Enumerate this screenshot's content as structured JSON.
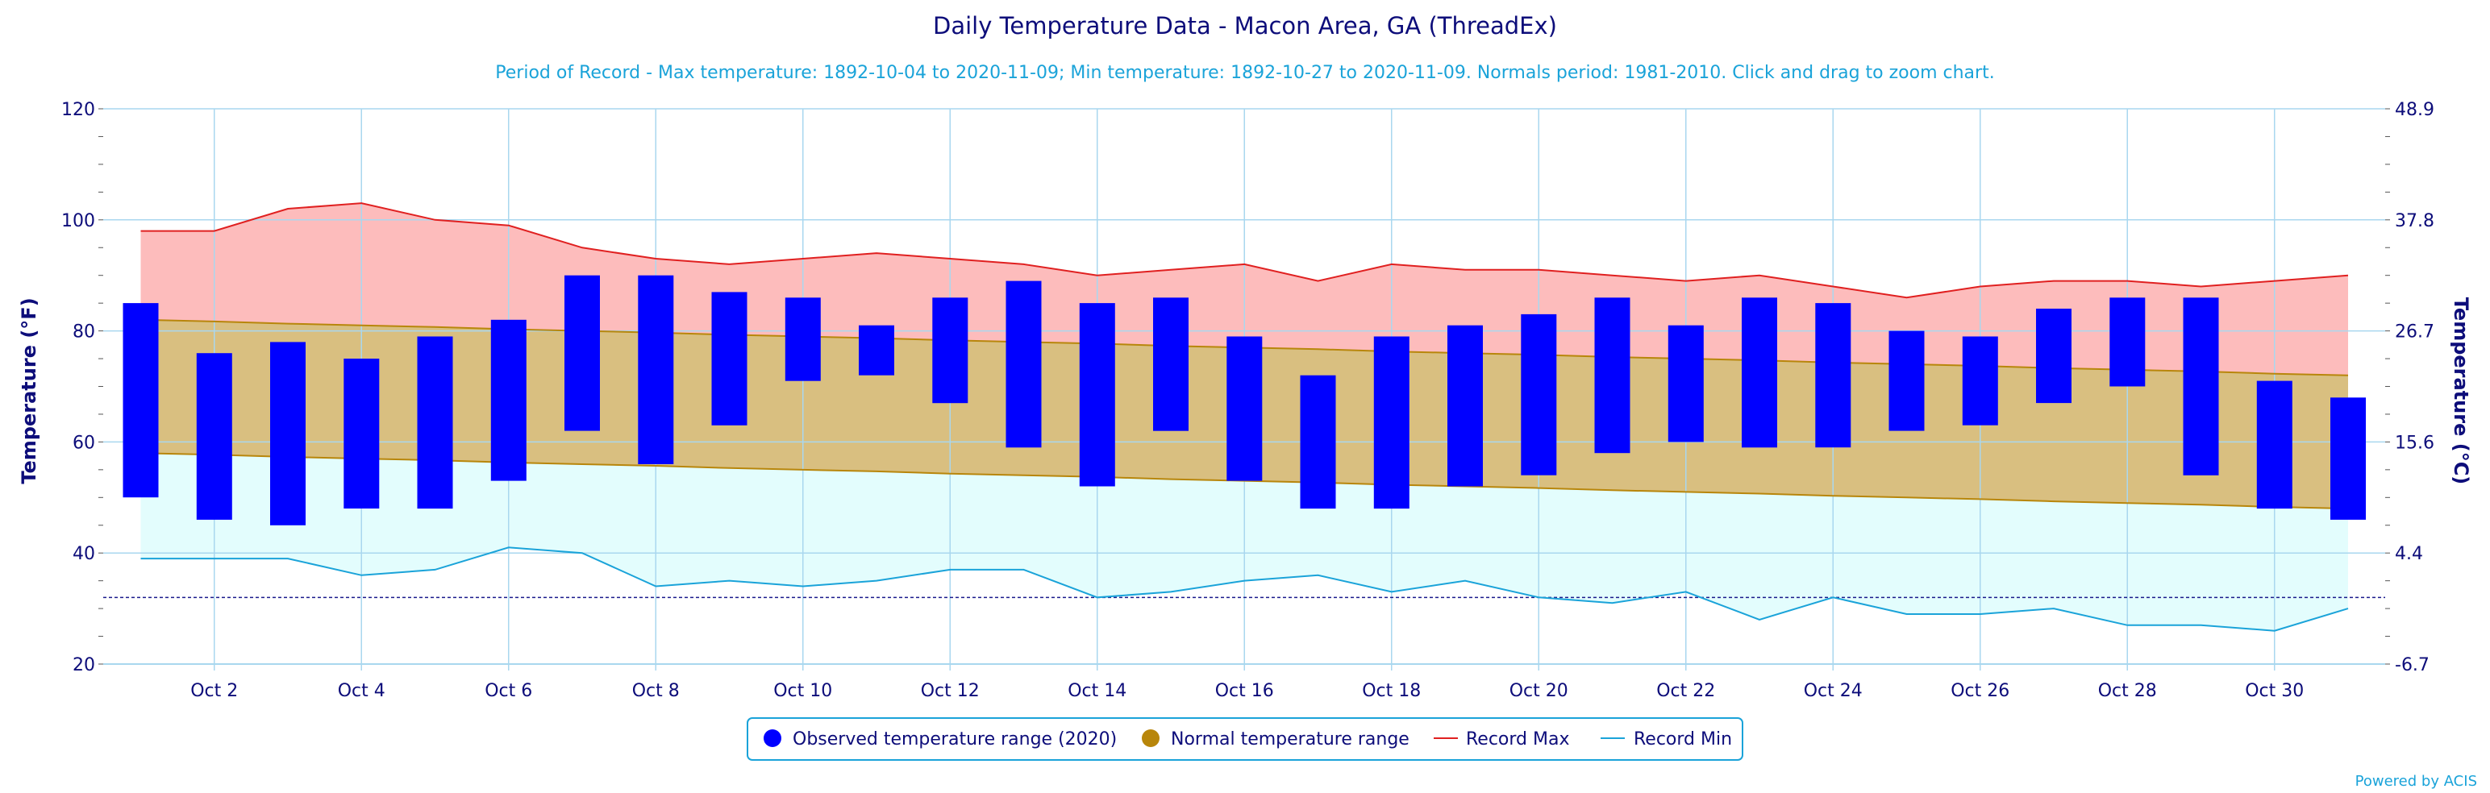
{
  "chart_data": {
    "type": "bar",
    "title": "Daily Temperature Data - Macon Area, GA (ThreadEx)",
    "subtitle": "Period of Record - Max temperature: 1892-10-04 to 2020-11-09; Min temperature: 1892-10-27 to 2020-11-09. Normals period: 1981-2010. Click and drag to zoom chart.",
    "ylabel_left": "Temperature (°F)",
    "ylabel_right": "Temperature (°C)",
    "ylim": [
      20,
      120
    ],
    "y_ticks_left": [
      "120",
      "100",
      "80",
      "60",
      "40",
      "20"
    ],
    "y_ticks_right": [
      "48.9",
      "37.8",
      "26.7",
      "15.6",
      "4.4",
      "-6.7"
    ],
    "x_tick_labels": [
      "Oct 2",
      "Oct 4",
      "Oct 6",
      "Oct 8",
      "Oct 10",
      "Oct 12",
      "Oct 14",
      "Oct 16",
      "Oct 18",
      "Oct 20",
      "Oct 22",
      "Oct 24",
      "Oct 26",
      "Oct 28",
      "Oct 30"
    ],
    "days": [
      1,
      2,
      3,
      4,
      5,
      6,
      7,
      8,
      9,
      10,
      11,
      12,
      13,
      14,
      15,
      16,
      17,
      18,
      19,
      20,
      21,
      22,
      23,
      24,
      25,
      26,
      27,
      28,
      29,
      30,
      31
    ],
    "freezing_line": 32,
    "grid": true,
    "legend_position": "bottom",
    "series": [
      {
        "name": "Observed temperature range (2020)",
        "color": "#0000ff",
        "low": [
          50,
          46,
          45,
          48,
          48,
          53,
          62,
          56,
          63,
          71,
          72,
          67,
          59,
          52,
          62,
          53,
          48,
          48,
          52,
          54,
          58,
          60,
          59,
          59,
          62,
          63,
          67,
          70,
          54,
          48,
          46
        ],
        "high": [
          85,
          76,
          78,
          75,
          79,
          82,
          90,
          90,
          87,
          86,
          81,
          86,
          89,
          85,
          86,
          79,
          72,
          79,
          81,
          83,
          86,
          81,
          86,
          85,
          80,
          79,
          84,
          86,
          86,
          71,
          68
        ]
      },
      {
        "name": "Normal temperature range",
        "color": "#b8860b",
        "low": [
          58,
          57.7,
          57.3,
          57,
          56.7,
          56.3,
          56,
          55.7,
          55.3,
          55,
          54.7,
          54.3,
          54,
          53.7,
          53.3,
          53,
          52.7,
          52.3,
          52,
          51.7,
          51.3,
          51,
          50.7,
          50.3,
          50,
          49.7,
          49.3,
          49,
          48.7,
          48.3,
          48
        ],
        "high": [
          82,
          81.7,
          81.3,
          81,
          80.7,
          80.3,
          80,
          79.7,
          79.3,
          79,
          78.7,
          78.3,
          78,
          77.7,
          77.3,
          77,
          76.7,
          76.3,
          76,
          75.7,
          75.3,
          75,
          74.7,
          74.3,
          74,
          73.7,
          73.3,
          73,
          72.7,
          72.3,
          72
        ]
      },
      {
        "name": "Record Max",
        "color": "#e02020",
        "values": [
          98,
          98,
          102,
          103,
          100,
          99,
          95,
          93,
          92,
          93,
          94,
          93,
          92,
          90,
          91,
          92,
          89,
          92,
          91,
          91,
          90,
          89,
          90,
          88,
          86,
          88,
          89,
          89,
          88,
          89,
          90
        ]
      },
      {
        "name": "Record Min",
        "color": "#1aa3d9",
        "values": [
          39,
          39,
          39,
          36,
          37,
          41,
          40,
          34,
          35,
          34,
          35,
          37,
          37,
          32,
          33,
          35,
          36,
          33,
          35,
          32,
          31,
          33,
          28,
          32,
          29,
          29,
          30,
          27,
          27,
          26,
          30
        ]
      }
    ],
    "colors": {
      "record_band": "#fdbcbc",
      "normal_band": "#d9bf80",
      "low_band": "#e3fdfd",
      "grid": "#a9d7ef",
      "axis_text": "#0d0d7a"
    }
  },
  "credit": "Powered by ACIS"
}
